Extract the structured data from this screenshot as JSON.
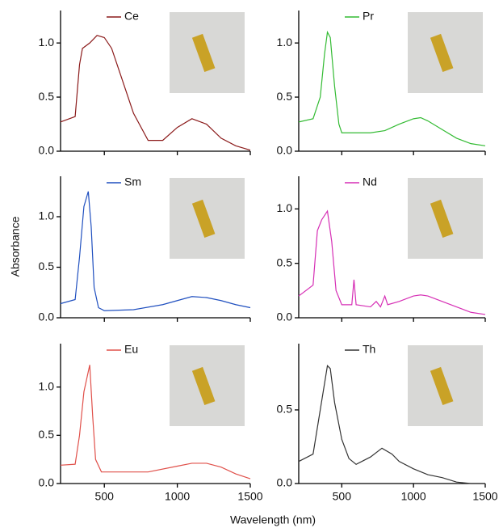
{
  "xlabel": "Wavelength (nm)",
  "ylabel": "Absorbance",
  "chart_data": [
    {
      "type": "line",
      "xlim": [
        200,
        1500
      ],
      "xticks": [
        500,
        1000,
        1500
      ],
      "ylim": [
        0,
        1.3
      ],
      "yticks": [
        {
          "value": 0,
          "label": "0.0"
        },
        {
          "value": 0.5,
          "label": "0.5"
        },
        {
          "value": 1,
          "label": "1.0"
        }
      ],
      "x": [
        200,
        300,
        330,
        350,
        400,
        450,
        500,
        550,
        600,
        700,
        800,
        900,
        1000,
        1100,
        1200,
        1300,
        1400,
        1500
      ],
      "series": [
        {
          "name": "Ce",
          "color": "#8b1a1a",
          "values": [
            0.27,
            0.32,
            0.8,
            0.95,
            1.0,
            1.07,
            1.05,
            0.95,
            0.75,
            0.35,
            0.1,
            0.1,
            0.22,
            0.3,
            0.25,
            0.12,
            0.05,
            0.01
          ]
        }
      ]
    },
    {
      "type": "line",
      "xlim": [
        200,
        1500
      ],
      "xticks": [
        500,
        1000,
        1500
      ],
      "ylim": [
        0,
        1.3
      ],
      "yticks": [
        {
          "value": 0,
          "label": "0.0"
        },
        {
          "value": 0.5,
          "label": "0.5"
        },
        {
          "value": 1,
          "label": "1.0"
        }
      ],
      "x": [
        200,
        300,
        350,
        380,
        400,
        420,
        450,
        480,
        500,
        600,
        700,
        800,
        900,
        1000,
        1050,
        1100,
        1200,
        1300,
        1400,
        1500
      ],
      "series": [
        {
          "name": "Pr",
          "color": "#33bb33",
          "values": [
            0.27,
            0.3,
            0.5,
            0.9,
            1.1,
            1.05,
            0.6,
            0.25,
            0.17,
            0.17,
            0.17,
            0.19,
            0.25,
            0.3,
            0.31,
            0.28,
            0.2,
            0.12,
            0.07,
            0.05
          ]
        }
      ]
    },
    {
      "type": "line",
      "xlim": [
        200,
        1500
      ],
      "xticks": [
        500,
        1000,
        1500
      ],
      "ylim": [
        0,
        1.4
      ],
      "yticks": [
        {
          "value": 0,
          "label": "0.0"
        },
        {
          "value": 0.5,
          "label": "0.5"
        },
        {
          "value": 1,
          "label": "1.0"
        }
      ],
      "x": [
        200,
        300,
        330,
        360,
        390,
        410,
        430,
        460,
        500,
        700,
        900,
        1000,
        1100,
        1200,
        1300,
        1400,
        1500
      ],
      "series": [
        {
          "name": "Sm",
          "color": "#1f4fbf",
          "values": [
            0.14,
            0.18,
            0.6,
            1.1,
            1.25,
            0.9,
            0.3,
            0.1,
            0.07,
            0.08,
            0.13,
            0.17,
            0.21,
            0.2,
            0.17,
            0.13,
            0.1
          ]
        }
      ]
    },
    {
      "type": "line",
      "xlim": [
        200,
        1500
      ],
      "xticks": [
        500,
        1000,
        1500
      ],
      "ylim": [
        0,
        1.3
      ],
      "yticks": [
        {
          "value": 0,
          "label": "0.0"
        },
        {
          "value": 0.5,
          "label": "0.5"
        },
        {
          "value": 1,
          "label": "1.0"
        }
      ],
      "x": [
        200,
        300,
        330,
        360,
        400,
        430,
        460,
        500,
        570,
        585,
        600,
        700,
        740,
        770,
        800,
        820,
        900,
        1000,
        1050,
        1100,
        1200,
        1300,
        1400,
        1500
      ],
      "series": [
        {
          "name": "Nd",
          "color": "#d62fb5",
          "values": [
            0.2,
            0.3,
            0.8,
            0.9,
            0.98,
            0.7,
            0.25,
            0.12,
            0.12,
            0.35,
            0.12,
            0.1,
            0.15,
            0.1,
            0.2,
            0.12,
            0.15,
            0.2,
            0.21,
            0.2,
            0.15,
            0.1,
            0.05,
            0.03
          ]
        }
      ]
    },
    {
      "type": "line",
      "xlim": [
        200,
        1500
      ],
      "xticks": [
        500,
        1000,
        1500
      ],
      "ylim": [
        0,
        1.45
      ],
      "yticks": [
        {
          "value": 0,
          "label": "0.0"
        },
        {
          "value": 0.5,
          "label": "0.5"
        },
        {
          "value": 1,
          "label": "1.0"
        }
      ],
      "x": [
        200,
        300,
        330,
        360,
        400,
        420,
        440,
        480,
        600,
        800,
        1000,
        1100,
        1200,
        1300,
        1400,
        1500
      ],
      "series": [
        {
          "name": "Eu",
          "color": "#e0504a",
          "values": [
            0.19,
            0.2,
            0.5,
            0.95,
            1.23,
            0.7,
            0.25,
            0.12,
            0.12,
            0.12,
            0.18,
            0.21,
            0.21,
            0.17,
            0.1,
            0.05
          ]
        }
      ]
    },
    {
      "type": "line",
      "xlim": [
        200,
        1500
      ],
      "xticks": [
        500,
        1000,
        1500
      ],
      "ylim": [
        0,
        0.95
      ],
      "yticks": [
        {
          "value": 0,
          "label": "0.0"
        },
        {
          "value": 0.5,
          "label": "0.5"
        }
      ],
      "x": [
        200,
        300,
        350,
        400,
        420,
        450,
        500,
        550,
        600,
        700,
        780,
        850,
        900,
        1000,
        1100,
        1200,
        1300,
        1400,
        1500
      ],
      "series": [
        {
          "name": "Th",
          "color": "#333333",
          "values": [
            0.15,
            0.2,
            0.5,
            0.8,
            0.78,
            0.55,
            0.3,
            0.17,
            0.13,
            0.18,
            0.24,
            0.2,
            0.15,
            0.1,
            0.06,
            0.04,
            0.01,
            0,
            0
          ]
        }
      ]
    }
  ]
}
